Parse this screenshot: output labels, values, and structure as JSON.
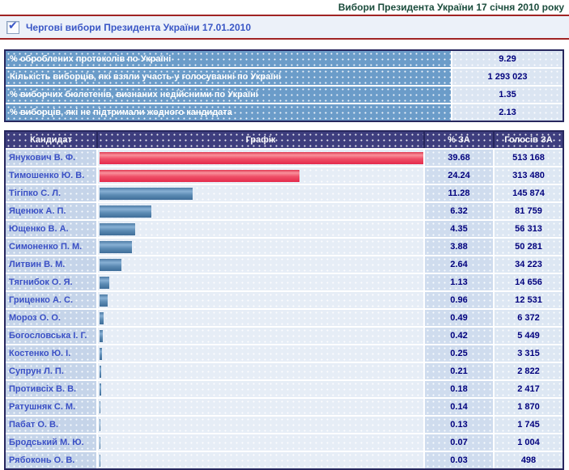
{
  "header": {
    "title": "Вибори Президента України 17 січня 2010 року"
  },
  "subheader": {
    "link_label": "Чергові вибори Президента України 17.01.2010",
    "checkbox_icon": "checked-checkbox-icon"
  },
  "summary_rows": [
    {
      "label": "% оброблених протоколів по Україні",
      "value": "9.29"
    },
    {
      "label": "Кількість виборців, які взяли участь у голосуванні по Україні",
      "value": "1 293 023"
    },
    {
      "label": "% виборчих бюлетенів, визнаних недійсними по Україні",
      "value": "1.35"
    },
    {
      "label": "% виборців, які не підтримали жодного кандидата",
      "value": "2.13"
    }
  ],
  "results": {
    "columns": {
      "candidate": "Кандидат",
      "graph": "Графік",
      "percent": "% ЗА",
      "votes": "Голосів ЗА"
    },
    "candidates": [
      {
        "name": "Янукович В. Ф.",
        "percent": "39.68",
        "votes": "513 168",
        "bar_color": "red"
      },
      {
        "name": "Тимошенко Ю. В.",
        "percent": "24.24",
        "votes": "313 480",
        "bar_color": "red"
      },
      {
        "name": "Тігіпко С. Л.",
        "percent": "11.28",
        "votes": "145 874",
        "bar_color": "blue"
      },
      {
        "name": "Яценюк А. П.",
        "percent": "6.32",
        "votes": "81 759",
        "bar_color": "blue"
      },
      {
        "name": "Ющенко В. А.",
        "percent": "4.35",
        "votes": "56 313",
        "bar_color": "blue"
      },
      {
        "name": "Симоненко П. М.",
        "percent": "3.88",
        "votes": "50 281",
        "bar_color": "blue"
      },
      {
        "name": "Литвин В. М.",
        "percent": "2.64",
        "votes": "34 223",
        "bar_color": "blue"
      },
      {
        "name": "Тягнибок О. Я.",
        "percent": "1.13",
        "votes": "14 656",
        "bar_color": "blue"
      },
      {
        "name": "Гриценко А. С.",
        "percent": "0.96",
        "votes": "12 531",
        "bar_color": "blue"
      },
      {
        "name": "Мороз О. О.",
        "percent": "0.49",
        "votes": "6 372",
        "bar_color": "blue"
      },
      {
        "name": "Богословська І. Г.",
        "percent": "0.42",
        "votes": "5 449",
        "bar_color": "blue"
      },
      {
        "name": "Костенко Ю. І.",
        "percent": "0.25",
        "votes": "3 315",
        "bar_color": "blue"
      },
      {
        "name": "Супрун Л. П.",
        "percent": "0.21",
        "votes": "2 822",
        "bar_color": "blue"
      },
      {
        "name": "Противсіх В. В.",
        "percent": "0.18",
        "votes": "2 417",
        "bar_color": "blue"
      },
      {
        "name": "Ратушняк С. М.",
        "percent": "0.14",
        "votes": "1 870",
        "bar_color": "blue"
      },
      {
        "name": "Пабат О. В.",
        "percent": "0.13",
        "votes": "1 745",
        "bar_color": "blue"
      },
      {
        "name": "Бродський М. Ю.",
        "percent": "0.07",
        "votes": "1 004",
        "bar_color": "blue"
      },
      {
        "name": "Рябоконь О. В.",
        "percent": "0.03",
        "votes": "498",
        "bar_color": "blue"
      }
    ]
  },
  "chart_data": {
    "type": "bar",
    "orientation": "horizontal",
    "title": "Чергові вибори Президента України 17.01.2010",
    "xlabel": "% ЗА",
    "xlim": [
      0,
      40
    ],
    "legend": false,
    "categories": [
      "Янукович В. Ф.",
      "Тимошенко Ю. В.",
      "Тігіпко С. Л.",
      "Яценюк А. П.",
      "Ющенко В. А.",
      "Симоненко П. М.",
      "Литвин В. М.",
      "Тягнибок О. Я.",
      "Гриценко А. С.",
      "Мороз О. О.",
      "Богословська І. Г.",
      "Костенко Ю. І.",
      "Супрун Л. П.",
      "Противсіх В. В.",
      "Ратушняк С. М.",
      "Пабат О. В.",
      "Бродський М. Ю.",
      "Рябоконь О. В."
    ],
    "series": [
      {
        "name": "% ЗА",
        "values": [
          39.68,
          24.24,
          11.28,
          6.32,
          4.35,
          3.88,
          2.64,
          1.13,
          0.96,
          0.49,
          0.42,
          0.25,
          0.21,
          0.18,
          0.14,
          0.13,
          0.07,
          0.03
        ]
      },
      {
        "name": "Голосів ЗА",
        "values": [
          513168,
          313480,
          145874,
          81759,
          56313,
          50281,
          34223,
          14656,
          12531,
          6372,
          5449,
          3315,
          2822,
          2417,
          1870,
          1745,
          1004,
          498
        ]
      }
    ],
    "bar_colors": [
      "red",
      "red",
      "blue",
      "blue",
      "blue",
      "blue",
      "blue",
      "blue",
      "blue",
      "blue",
      "blue",
      "blue",
      "blue",
      "blue",
      "blue",
      "blue",
      "blue",
      "blue"
    ]
  },
  "colors": {
    "title_text": "#1b4c3c",
    "rule_red": "#a02424",
    "link_blue": "#3a57c6",
    "table_border_navy": "#27275e",
    "header_cell_navy": "#3e3e7e",
    "summary_label_bg": "#6b9cc9",
    "value_text_navy": "#00007d",
    "bar_red": "#ef4a63",
    "bar_blue": "#5d8cb4"
  }
}
